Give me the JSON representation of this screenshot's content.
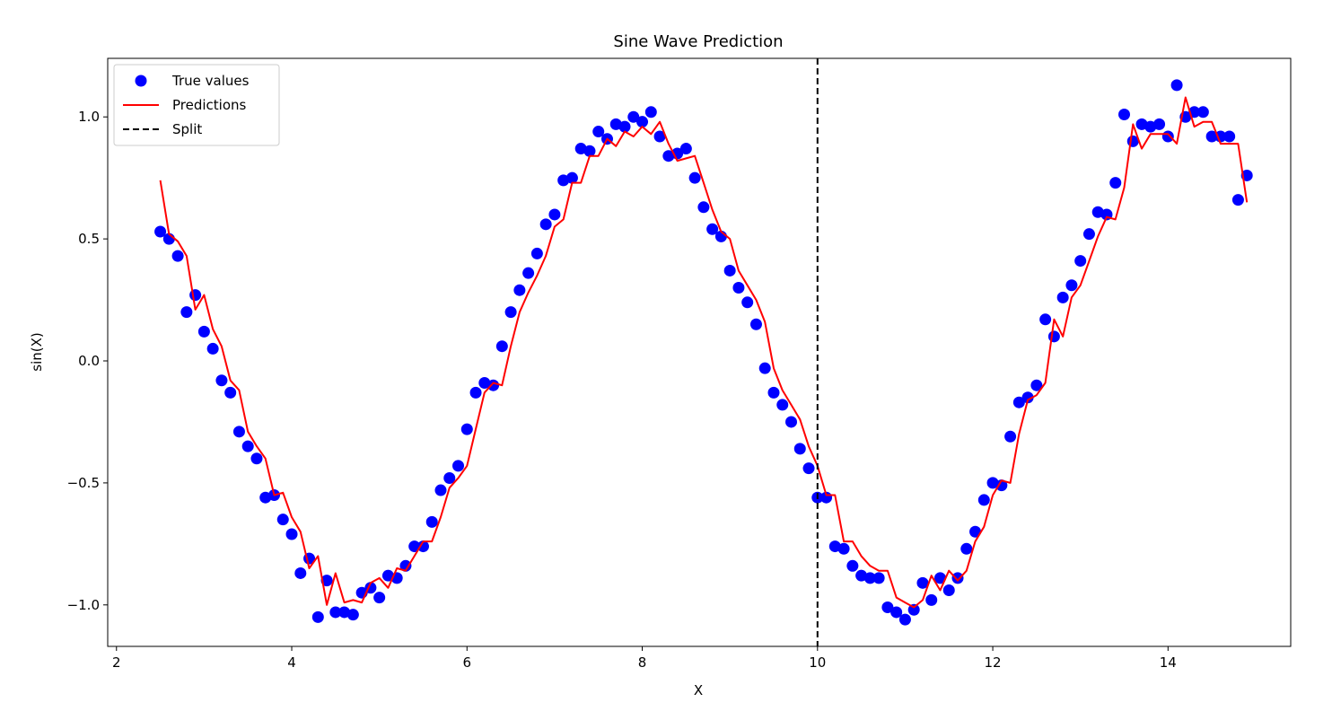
{
  "chart_data": {
    "type": "line",
    "title": "Sine Wave Prediction",
    "xlabel": "X",
    "ylabel": "sin(X)",
    "xlim": [
      1.9,
      15.4
    ],
    "ylim": [
      -1.17,
      1.24
    ],
    "xticks": [
      2,
      4,
      6,
      8,
      10,
      12,
      14
    ],
    "xtick_labels": [
      "2",
      "4",
      "6",
      "8",
      "10",
      "12",
      "14"
    ],
    "yticks": [
      -1.0,
      -0.5,
      0.0,
      0.5,
      1.0
    ],
    "ytick_labels": [
      "−1.0",
      "−0.5",
      "0.0",
      "0.5",
      "1.0"
    ],
    "grid": false,
    "legend_position": "upper left",
    "split_x": 10,
    "series": [
      {
        "name": "True values",
        "kind": "scatter",
        "color": "#0000ff",
        "x": [
          2.5,
          2.6,
          2.7,
          2.8,
          2.9,
          3.0,
          3.1,
          3.2,
          3.3,
          3.4,
          3.5,
          3.6,
          3.7,
          3.8,
          3.9,
          4.0,
          4.1,
          4.2,
          4.3,
          4.4,
          4.5,
          4.6,
          4.7,
          4.8,
          4.9,
          5.0,
          5.1,
          5.2,
          5.3,
          5.4,
          5.5,
          5.6,
          5.7,
          5.8,
          5.9,
          6.0,
          6.1,
          6.2,
          6.3,
          6.4,
          6.5,
          6.6,
          6.7,
          6.8,
          6.9,
          7.0,
          7.1,
          7.2,
          7.3,
          7.4,
          7.5,
          7.6,
          7.7,
          7.8,
          7.9,
          8.0,
          8.1,
          8.2,
          8.3,
          8.4,
          8.5,
          8.6,
          8.7,
          8.8,
          8.9,
          9.0,
          9.1,
          9.2,
          9.3,
          9.4,
          9.5,
          9.6,
          9.7,
          9.8,
          9.9,
          10.0,
          10.1,
          10.2,
          10.3,
          10.4,
          10.5,
          10.6,
          10.7,
          10.8,
          10.9,
          11.0,
          11.1,
          11.2,
          11.3,
          11.4,
          11.5,
          11.6,
          11.7,
          11.8,
          11.9,
          12.0,
          12.1,
          12.2,
          12.3,
          12.4,
          12.5,
          12.6,
          12.7,
          12.8,
          12.9,
          13.0,
          13.1,
          13.2,
          13.3,
          13.4,
          13.5,
          13.6,
          13.7,
          13.8,
          13.9,
          14.0,
          14.1,
          14.2,
          14.3,
          14.4,
          14.5,
          14.6,
          14.7,
          14.8,
          14.9
        ],
        "y": [
          0.53,
          0.5,
          0.43,
          0.2,
          0.27,
          0.12,
          0.05,
          -0.08,
          -0.13,
          -0.29,
          -0.35,
          -0.4,
          -0.56,
          -0.55,
          -0.65,
          -0.71,
          -0.87,
          -0.81,
          -1.05,
          -0.9,
          -1.03,
          -1.03,
          -1.04,
          -0.95,
          -0.93,
          -0.97,
          -0.88,
          -0.89,
          -0.84,
          -0.76,
          -0.76,
          -0.66,
          -0.53,
          -0.48,
          -0.43,
          -0.28,
          -0.13,
          -0.09,
          -0.1,
          0.06,
          0.2,
          0.29,
          0.36,
          0.44,
          0.56,
          0.6,
          0.74,
          0.75,
          0.87,
          0.86,
          0.94,
          0.91,
          0.97,
          0.96,
          1.0,
          0.98,
          1.02,
          0.92,
          0.84,
          0.85,
          0.87,
          0.75,
          0.63,
          0.54,
          0.51,
          0.37,
          0.3,
          0.24,
          0.15,
          -0.03,
          -0.13,
          -0.18,
          -0.25,
          -0.36,
          -0.44,
          -0.56,
          -0.56,
          -0.76,
          -0.77,
          -0.84,
          -0.88,
          -0.89,
          -0.89,
          -1.01,
          -1.03,
          -1.06,
          -1.02,
          -0.91,
          -0.98,
          -0.89,
          -0.94,
          -0.89,
          -0.77,
          -0.7,
          -0.57,
          -0.5,
          -0.51,
          -0.31,
          -0.17,
          -0.15,
          -0.1,
          0.17,
          0.1,
          0.26,
          0.31,
          0.41,
          0.52,
          0.61,
          0.6,
          0.73,
          1.01,
          0.9,
          0.97,
          0.96,
          0.97,
          0.92,
          1.13,
          1.0,
          1.02,
          1.02,
          0.92,
          0.92,
          0.92,
          0.66,
          0.76
        ]
      },
      {
        "name": "Predictions",
        "kind": "line",
        "color": "#ff0000",
        "x": [
          2.5,
          2.6,
          2.7,
          2.8,
          2.9,
          3.0,
          3.1,
          3.2,
          3.3,
          3.4,
          3.5,
          3.6,
          3.7,
          3.8,
          3.9,
          4.0,
          4.1,
          4.2,
          4.3,
          4.4,
          4.5,
          4.6,
          4.7,
          4.8,
          4.9,
          5.0,
          5.1,
          5.2,
          5.3,
          5.4,
          5.5,
          5.6,
          5.7,
          5.8,
          5.9,
          6.0,
          6.1,
          6.2,
          6.3,
          6.4,
          6.5,
          6.6,
          6.7,
          6.8,
          6.9,
          7.0,
          7.1,
          7.2,
          7.3,
          7.4,
          7.5,
          7.6,
          7.7,
          7.8,
          7.9,
          8.0,
          8.1,
          8.2,
          8.3,
          8.4,
          8.5,
          8.6,
          8.7,
          8.8,
          8.9,
          9.0,
          9.1,
          9.2,
          9.3,
          9.4,
          9.5,
          9.6,
          9.7,
          9.8,
          9.9,
          10.0,
          10.1,
          10.2,
          10.3,
          10.4,
          10.5,
          10.6,
          10.7,
          10.8,
          10.9,
          11.0,
          11.1,
          11.2,
          11.3,
          11.4,
          11.5,
          11.6,
          11.7,
          11.8,
          11.9,
          12.0,
          12.1,
          12.2,
          12.3,
          12.4,
          12.5,
          12.6,
          12.7,
          12.8,
          12.9,
          13.0,
          13.1,
          13.2,
          13.3,
          13.4,
          13.5,
          13.6,
          13.7,
          13.8,
          13.9,
          14.0,
          14.1,
          14.2,
          14.3,
          14.4,
          14.5,
          14.6,
          14.7,
          14.8,
          14.9
        ],
        "y": [
          0.74,
          0.52,
          0.49,
          0.43,
          0.21,
          0.27,
          0.13,
          0.06,
          -0.08,
          -0.12,
          -0.29,
          -0.35,
          -0.4,
          -0.55,
          -0.54,
          -0.64,
          -0.7,
          -0.85,
          -0.8,
          -1.0,
          -0.87,
          -0.99,
          -0.98,
          -0.99,
          -0.91,
          -0.89,
          -0.93,
          -0.85,
          -0.86,
          -0.8,
          -0.74,
          -0.74,
          -0.64,
          -0.52,
          -0.48,
          -0.43,
          -0.28,
          -0.13,
          -0.09,
          -0.1,
          0.06,
          0.2,
          0.28,
          0.35,
          0.43,
          0.55,
          0.58,
          0.73,
          0.73,
          0.84,
          0.84,
          0.91,
          0.88,
          0.94,
          0.92,
          0.96,
          0.93,
          0.98,
          0.89,
          0.82,
          0.83,
          0.84,
          0.73,
          0.62,
          0.53,
          0.5,
          0.37,
          0.31,
          0.25,
          0.16,
          -0.03,
          -0.12,
          -0.18,
          -0.24,
          -0.35,
          -0.43,
          -0.55,
          -0.55,
          -0.74,
          -0.74,
          -0.8,
          -0.84,
          -0.86,
          -0.86,
          -0.97,
          -0.99,
          -1.01,
          -0.98,
          -0.88,
          -0.94,
          -0.86,
          -0.9,
          -0.86,
          -0.74,
          -0.68,
          -0.55,
          -0.49,
          -0.5,
          -0.3,
          -0.16,
          -0.14,
          -0.09,
          0.17,
          0.1,
          0.26,
          0.31,
          0.41,
          0.51,
          0.59,
          0.58,
          0.71,
          0.97,
          0.87,
          0.93,
          0.93,
          0.93,
          0.89,
          1.08,
          0.96,
          0.98,
          0.98,
          0.89,
          0.89,
          0.89,
          0.65
        ]
      },
      {
        "name": "Split",
        "kind": "vline",
        "color": "#000000",
        "x": 10
      }
    ]
  }
}
